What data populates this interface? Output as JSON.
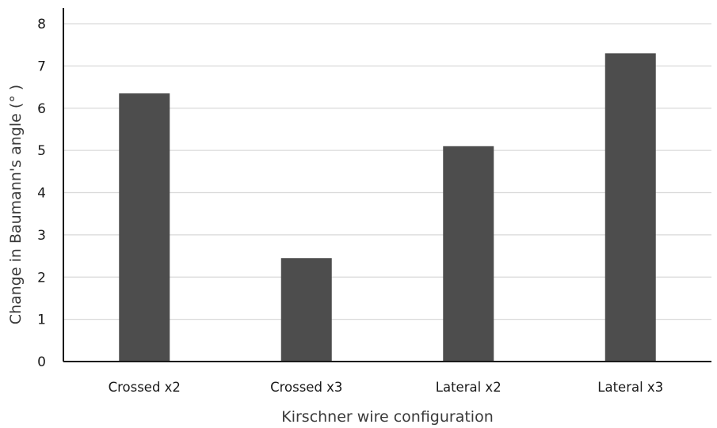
{
  "chart_data": {
    "type": "bar",
    "categories": [
      "Crossed x2",
      "Crossed x3",
      "Lateral x2",
      "Lateral x3"
    ],
    "values": [
      6.35,
      2.45,
      5.1,
      7.3
    ],
    "title": "",
    "xlabel": "Kirschner wire configuration",
    "ylabel": "Change in Baumann's angle (° )",
    "ylim": [
      0,
      8
    ],
    "yticks": [
      0,
      1,
      2,
      3,
      4,
      5,
      6,
      7,
      8
    ],
    "grid": true,
    "legend": "none",
    "bar_color": "#4d4d4d",
    "grid_color": "#d9d9d9",
    "axis_color": "#1a1a1a"
  }
}
